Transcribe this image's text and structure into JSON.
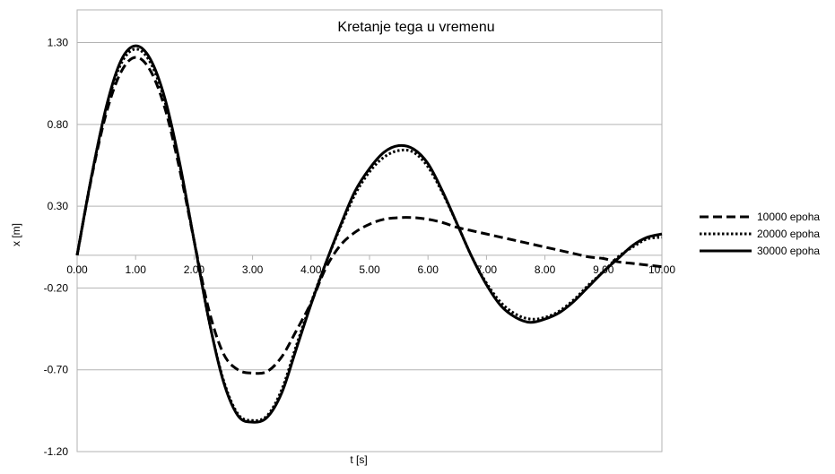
{
  "chart_data": {
    "type": "line",
    "title": "Kretanje tega u vremenu",
    "xlabel": "t [s]",
    "ylabel": "x [m]",
    "xlim": [
      0,
      10
    ],
    "ylim": [
      -1.2,
      1.5
    ],
    "x_ticks": [
      "0.00",
      "1.00",
      "2.00",
      "3.00",
      "4.00",
      "5.00",
      "6.00",
      "7.00",
      "8.00",
      "9.00",
      "10.00"
    ],
    "y_ticks": [
      "1.30",
      "0.80",
      "0.30",
      "-0.20",
      "-0.70",
      "-1.20"
    ],
    "grid": "horizontal",
    "legend_position": "right",
    "x": [
      0,
      0.25,
      0.5,
      0.75,
      1.0,
      1.25,
      1.5,
      1.75,
      2.0,
      2.25,
      2.5,
      2.75,
      3.0,
      3.25,
      3.5,
      3.75,
      4.0,
      4.25,
      4.5,
      4.75,
      5.0,
      5.25,
      5.5,
      5.75,
      6.0,
      6.25,
      6.5,
      6.75,
      7.0,
      7.25,
      7.5,
      7.75,
      8.0,
      8.25,
      8.5,
      8.75,
      9.0,
      9.25,
      9.5,
      9.75,
      10.0
    ],
    "series": [
      {
        "name": "10000 epoha",
        "style": "dashed",
        "color": "#000000",
        "values": [
          0,
          0.48,
          0.87,
          1.12,
          1.21,
          1.13,
          0.9,
          0.53,
          0.09,
          -0.33,
          -0.6,
          -0.7,
          -0.72,
          -0.71,
          -0.62,
          -0.46,
          -0.29,
          -0.08,
          0.06,
          0.14,
          0.19,
          0.22,
          0.23,
          0.23,
          0.22,
          0.2,
          0.17,
          0.15,
          0.13,
          0.11,
          0.09,
          0.07,
          0.05,
          0.03,
          0.01,
          -0.01,
          -0.02,
          -0.04,
          -0.05,
          -0.06,
          -0.07
        ]
      },
      {
        "name": "20000 epoha",
        "style": "dotted",
        "color": "#000000",
        "values": [
          0,
          0.49,
          0.9,
          1.17,
          1.26,
          1.18,
          0.94,
          0.56,
          0.09,
          -0.39,
          -0.76,
          -0.97,
          -1.01,
          -0.98,
          -0.82,
          -0.55,
          -0.29,
          -0.05,
          0.17,
          0.37,
          0.51,
          0.6,
          0.64,
          0.63,
          0.54,
          0.38,
          0.19,
          -0.01,
          -0.17,
          -0.29,
          -0.36,
          -0.39,
          -0.38,
          -0.34,
          -0.27,
          -0.18,
          -0.1,
          -0.01,
          0.05,
          0.1,
          0.11
        ]
      },
      {
        "name": "30000 epoha",
        "style": "solid",
        "color": "#000000",
        "values": [
          0,
          0.49,
          0.91,
          1.19,
          1.28,
          1.2,
          0.96,
          0.57,
          0.09,
          -0.39,
          -0.77,
          -0.98,
          -1.02,
          -0.99,
          -0.84,
          -0.57,
          -0.3,
          -0.05,
          0.18,
          0.39,
          0.53,
          0.63,
          0.67,
          0.65,
          0.56,
          0.39,
          0.19,
          -0.01,
          -0.18,
          -0.31,
          -0.38,
          -0.41,
          -0.39,
          -0.35,
          -0.28,
          -0.19,
          -0.1,
          -0.02,
          0.06,
          0.11,
          0.13
        ]
      }
    ]
  }
}
